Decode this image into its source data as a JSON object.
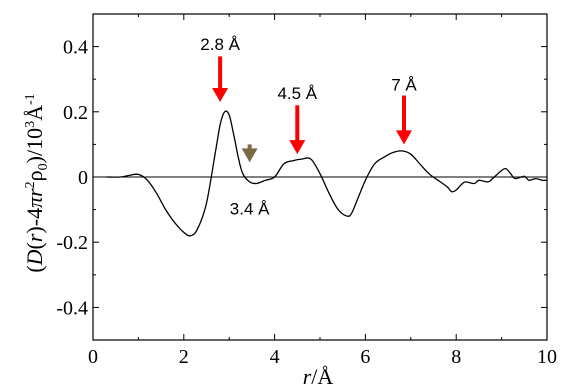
{
  "chart_data": {
    "type": "line",
    "xlabel_parts": {
      "r": "r",
      "unit": "/Å"
    },
    "ylabel_parts": {
      "D": "D",
      "r1": "r",
      "mid": ")-4",
      "pi": "π",
      "r2": "r",
      "sq": "2",
      "rho": "ρ",
      "zero": "0",
      "tail": ")/10",
      "cube": "3",
      "ang": "Å",
      "neg1": "-1"
    },
    "xlim": [
      0,
      10
    ],
    "ylim": [
      -0.5,
      0.5
    ],
    "x_ticks": [
      0,
      2,
      4,
      6,
      8,
      10
    ],
    "y_ticks": [
      -0.4,
      -0.2,
      0,
      0.2,
      0.4
    ],
    "x_tick_labels": [
      "0",
      "2",
      "4",
      "6",
      "8",
      "10"
    ],
    "y_tick_labels": [
      "-0.4",
      "-0.2",
      "0",
      "0.2",
      "0.4"
    ],
    "zero_line": true,
    "grid": false,
    "series": [
      {
        "color": "#000000",
        "x": [
          0.3,
          0.6,
          0.8,
          1.0,
          1.2,
          1.4,
          1.6,
          1.8,
          2.0,
          2.15,
          2.3,
          2.5,
          2.7,
          2.8,
          2.9,
          3.0,
          3.1,
          3.2,
          3.3,
          3.45,
          3.6,
          3.8,
          4.0,
          4.2,
          4.4,
          4.6,
          4.8,
          5.0,
          5.2,
          5.4,
          5.6,
          5.7,
          5.85,
          6.0,
          6.2,
          6.4,
          6.6,
          6.8,
          7.0,
          7.2,
          7.4,
          7.6,
          7.8,
          7.9,
          8.0,
          8.1,
          8.2,
          8.4,
          8.5,
          8.7,
          8.8,
          9.0,
          9.1,
          9.2,
          9.3,
          9.5,
          9.6,
          9.75,
          9.9,
          10.0
        ],
        "y": [
          0.0,
          0.0,
          0.005,
          0.008,
          -0.01,
          -0.05,
          -0.1,
          -0.14,
          -0.17,
          -0.18,
          -0.16,
          -0.08,
          0.08,
          0.16,
          0.2,
          0.19,
          0.13,
          0.06,
          0.01,
          -0.015,
          -0.02,
          -0.01,
          0.0,
          0.04,
          0.05,
          0.055,
          0.055,
          0.01,
          -0.05,
          -0.1,
          -0.12,
          -0.11,
          -0.06,
          -0.01,
          0.04,
          0.06,
          0.075,
          0.08,
          0.07,
          0.04,
          0.01,
          -0.01,
          -0.03,
          -0.045,
          -0.04,
          -0.025,
          -0.015,
          -0.02,
          -0.01,
          -0.015,
          -0.005,
          0.02,
          0.025,
          0.01,
          -0.005,
          0.002,
          -0.01,
          -0.005,
          -0.01,
          -0.01
        ]
      }
    ],
    "annotations": [
      {
        "text": "2.8 Å",
        "x": 2.8,
        "arrow_color": "#ff0000",
        "arrow_from_y": 0.37,
        "arrow_to_y": 0.23,
        "label_y": 0.39
      },
      {
        "text": "4.5 Å",
        "x": 4.5,
        "arrow_color": "#ff0000",
        "arrow_from_y": 0.22,
        "arrow_to_y": 0.07,
        "label_y": 0.24
      },
      {
        "text": "7 Å",
        "x": 6.85,
        "arrow_color": "#ff0000",
        "arrow_from_y": 0.25,
        "arrow_to_y": 0.1,
        "label_y": 0.265
      },
      {
        "text": "3.4 Å",
        "x": 3.45,
        "arrow_color": "#7a6a45",
        "arrow_from_y": 0.1,
        "arrow_to_y": 0.045,
        "label_y": -0.115
      }
    ]
  }
}
